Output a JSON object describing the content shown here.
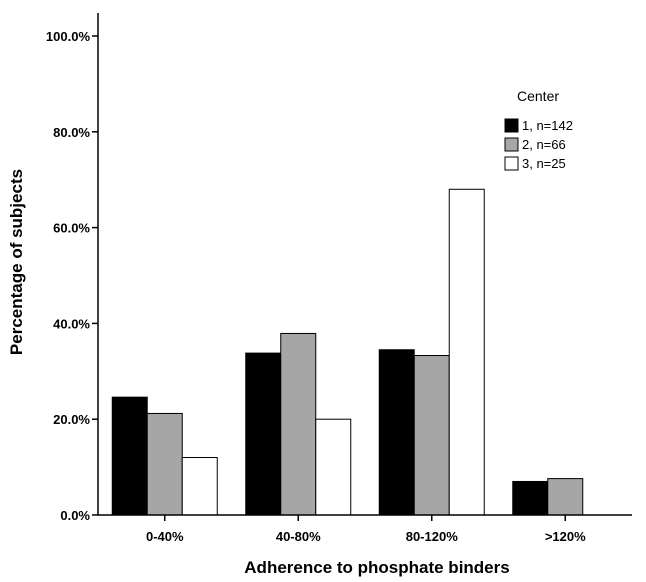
{
  "chart_data": {
    "type": "bar",
    "xlabel": "Adherence to phosphate binders",
    "ylabel": "Percentage of subjects",
    "categories": [
      "0-40%",
      "40-80%",
      "80-120%",
      ">120%"
    ],
    "ylim": [
      0,
      100
    ],
    "y_ticks": [
      "0.0%",
      "20.0%",
      "40.0%",
      "60.0%",
      "80.0%",
      "100.0%"
    ],
    "legend": {
      "title": "Center",
      "position": "right"
    },
    "grid": false,
    "series": [
      {
        "name": "1, n=142",
        "color": "#000000",
        "values": [
          24.6,
          33.8,
          34.5,
          7.0
        ]
      },
      {
        "name": "2, n=66",
        "color": "#a6a6a6",
        "values": [
          21.2,
          37.9,
          33.3,
          7.6
        ]
      },
      {
        "name": "3, n=25",
        "color": "#ffffff",
        "values": [
          12.0,
          20.0,
          68.0,
          0.0
        ]
      }
    ]
  }
}
